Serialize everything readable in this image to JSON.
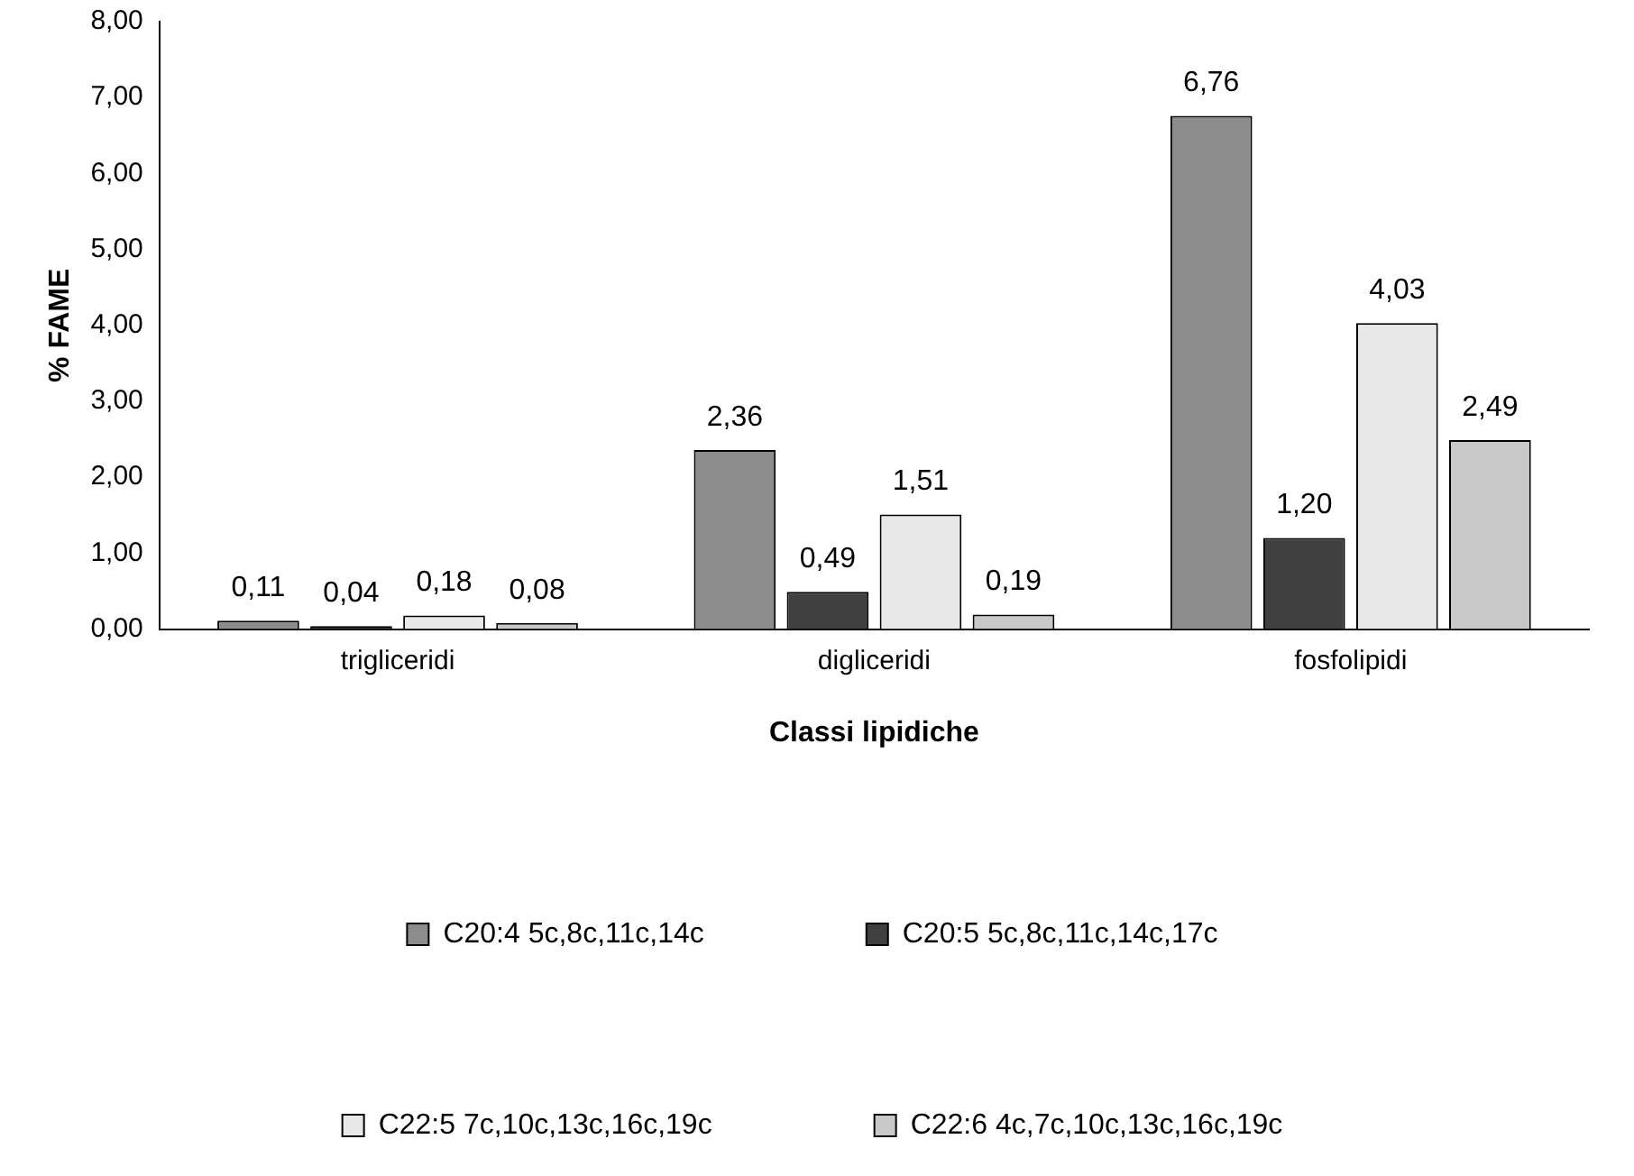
{
  "chart_data": {
    "type": "bar",
    "xlabel": "Classi lipidiche",
    "ylabel": "% FAME",
    "categories": [
      "trigliceridi",
      "digliceridi",
      "fosfolipidi"
    ],
    "series": [
      {
        "name": "C20:4 5c,8c,11c,14c",
        "color": "#8c8c8c",
        "values": [
          0.11,
          2.36,
          6.76
        ],
        "value_labels": [
          "0,11",
          "2,36",
          "6,76"
        ]
      },
      {
        "name": "C20:5 5c,8c,11c,14c,17c",
        "color": "#404040",
        "values": [
          0.04,
          0.49,
          1.2
        ],
        "value_labels": [
          "0,04",
          "0,49",
          "1,20"
        ]
      },
      {
        "name": "C22:5 7c,10c,13c,16c,19c",
        "color": "#e8e8e8",
        "values": [
          0.18,
          1.51,
          4.03
        ],
        "value_labels": [
          "0,18",
          "1,51",
          "4,03"
        ]
      },
      {
        "name": "C22:6 4c,7c,10c,13c,16c,19c",
        "color": "#c8c8c8",
        "values": [
          0.08,
          0.19,
          2.49
        ],
        "value_labels": [
          "0,08",
          "0,19",
          "2,49"
        ]
      }
    ],
    "ylim": [
      0,
      8
    ],
    "yticks": [
      {
        "value": 0,
        "label": "0,00"
      },
      {
        "value": 1,
        "label": "1,00"
      },
      {
        "value": 2,
        "label": "2,00"
      },
      {
        "value": 3,
        "label": "3,00"
      },
      {
        "value": 4,
        "label": "4,00"
      },
      {
        "value": 5,
        "label": "5,00"
      },
      {
        "value": 6,
        "label": "6,00"
      },
      {
        "value": 7,
        "label": "7,00"
      },
      {
        "value": 8,
        "label": "8,00"
      }
    ],
    "grid": false,
    "legend": "bottom"
  }
}
